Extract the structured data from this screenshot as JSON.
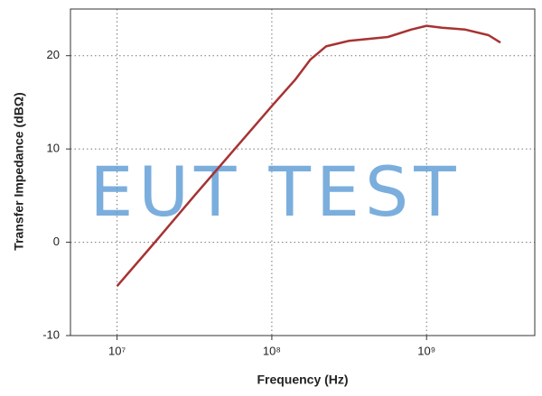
{
  "chart_data": {
    "type": "line",
    "xlabel": "Frequency (Hz)",
    "ylabel": "Transfer Impedance (dBΩ)",
    "watermark": "EUT TEST",
    "xscale": "log",
    "grid": true,
    "xlim": [
      5000000,
      5000000000
    ],
    "ylim": [
      -10,
      25
    ],
    "xticks": [
      {
        "value": 10000000,
        "label": "10⁷"
      },
      {
        "value": 100000000,
        "label": "10⁸"
      },
      {
        "value": 1000000000,
        "label": "10⁹"
      }
    ],
    "yticks": [
      -10,
      0,
      10,
      20
    ],
    "x": [
      10000000,
      17780000,
      31620000,
      56230000,
      100000000,
      141300000,
      177800000,
      223900000,
      316200000,
      562300000,
      794300000,
      1000000000,
      1259000000,
      1778000000,
      2512000000,
      3000000000
    ],
    "series": [
      {
        "color": "#a83232",
        "values": [
          -4.7,
          0.1,
          5.0,
          9.8,
          14.6,
          17.4,
          19.6,
          21.0,
          21.6,
          22.0,
          22.8,
          23.2,
          23.0,
          22.8,
          22.2,
          21.4
        ]
      }
    ]
  }
}
